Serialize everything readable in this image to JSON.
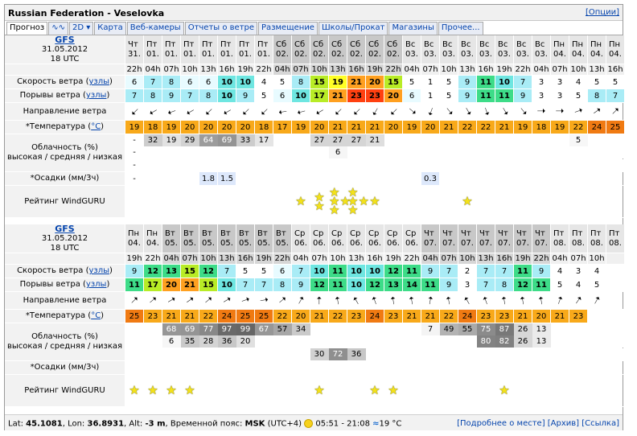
{
  "window": {
    "title": "Russian Federation - Veselovka",
    "options": "[Опции]"
  },
  "tabs": [
    "Прогноз",
    "2D",
    "Карта",
    "Веб-камеры",
    "Отчеты о ветре",
    "Размещение",
    "Школы/Прокат",
    "Магазины",
    "Прочее..."
  ],
  "icons": {
    "graph_tab": "wave-graph-icon",
    "dropdown": "chevron-down-icon",
    "star": "star-icon",
    "sun": "sun-icon",
    "water": "water-wave-icon"
  },
  "labels": {
    "model": "GFS",
    "date": "31.05.2012",
    "utc": "18 UTC",
    "speed_prefix": "Скорость ветра (",
    "gust_prefix": "Порывы ветра (",
    "units": "узлы",
    "close": ")",
    "direction": "Направление ветра",
    "temp_prefix": "*Температура (",
    "temp_unit": "°C",
    "cloud1": "Облачность (%)",
    "cloud2": "высокая / средняя / низкая",
    "precip": "*Осадки (мм/3ч)",
    "rating": "Рейтинг WindGURU"
  },
  "colors": {
    "wind_scale": [
      "#ffffff",
      "#e8fbff",
      "#a9ecf6",
      "#6ee6e1",
      "#3ddc88",
      "#ffff25",
      "#ffa020",
      "#ff4010"
    ],
    "temp_orange": "#f8a91a",
    "temp_dark": "#f07a12"
  },
  "blocks": [
    {
      "days": [
        "Чт",
        "Пт",
        "Пт",
        "Пт",
        "Пт",
        "Пт",
        "Пт",
        "Пт",
        "Сб",
        "Сб",
        "Сб",
        "Сб",
        "Сб",
        "Сб",
        "Сб",
        "Вс",
        "Вс",
        "Вс",
        "Вс",
        "Вс",
        "Вс",
        "Вс",
        "Вс",
        "Пн",
        "Пн",
        "Пн",
        "Пн"
      ],
      "dates": [
        "31.",
        "01.",
        "01.",
        "01.",
        "01.",
        "01.",
        "01.",
        "01.",
        "02.",
        "02.",
        "02.",
        "02.",
        "02.",
        "02.",
        "02.",
        "03.",
        "03.",
        "03.",
        "03.",
        "03.",
        "03.",
        "03.",
        "03.",
        "04.",
        "04.",
        "04.",
        "04."
      ],
      "hours": [
        "22h",
        "04h",
        "07h",
        "10h",
        "13h",
        "16h",
        "19h",
        "22h",
        "04h",
        "07h",
        "10h",
        "13h",
        "16h",
        "19h",
        "22h",
        "04h",
        "07h",
        "10h",
        "13h",
        "16h",
        "19h",
        "22h",
        "04h",
        "07h",
        "10h",
        "13h",
        "16h"
      ],
      "weekend": [
        0,
        0,
        0,
        0,
        0,
        0,
        0,
        0,
        1,
        1,
        1,
        1,
        1,
        1,
        1,
        0,
        0,
        0,
        0,
        0,
        0,
        0,
        0,
        0,
        0,
        0,
        0
      ],
      "speed": [
        6,
        7,
        8,
        6,
        6,
        10,
        10,
        4,
        5,
        8,
        15,
        19,
        21,
        20,
        15,
        5,
        1,
        5,
        9,
        11,
        10,
        7,
        3,
        3,
        4,
        5,
        5
      ],
      "gust": [
        7,
        8,
        9,
        7,
        8,
        10,
        9,
        5,
        6,
        10,
        17,
        21,
        23,
        23,
        20,
        6,
        1,
        5,
        9,
        11,
        11,
        9,
        3,
        3,
        5,
        8,
        7
      ],
      "dir": [
        45,
        60,
        70,
        60,
        45,
        60,
        45,
        45,
        80,
        75,
        60,
        45,
        45,
        30,
        45,
        310,
        20,
        320,
        330,
        340,
        330,
        320,
        270,
        270,
        250,
        235,
        225
      ],
      "temp": [
        19,
        18,
        19,
        20,
        20,
        20,
        20,
        18,
        17,
        19,
        20,
        21,
        21,
        21,
        20,
        19,
        20,
        21,
        22,
        22,
        21,
        19,
        18,
        19,
        22,
        24,
        25
      ],
      "cloud_high": [
        "-",
        "32",
        "19",
        "29",
        "64",
        "69",
        "33",
        "17",
        "",
        "",
        "27",
        "27",
        "27",
        "21",
        "",
        "",
        "",
        "",
        "",
        "",
        "",
        "",
        "",
        "",
        "5",
        "",
        ""
      ],
      "cloud_mid": [
        "-",
        "",
        "",
        "",
        "",
        "",
        "",
        "",
        "",
        "",
        "",
        "6",
        "",
        "",
        "",
        "",
        "",
        "",
        "",
        "",
        "",
        "",
        "",
        "",
        "",
        "",
        ""
      ],
      "cloud_low": [
        "-",
        "",
        "",
        "",
        "",
        "",
        "",
        "",
        "",
        "",
        "",
        "",
        "",
        "",
        "",
        "",
        "",
        "",
        "",
        "",
        "",
        "",
        "",
        "",
        "",
        "",
        ""
      ],
      "precip": [
        "-",
        "",
        "",
        "",
        "1.8",
        "1.5",
        "",
        "",
        "",
        "",
        "",
        "",
        "",
        "",
        "",
        "",
        "0.3",
        "",
        "",
        "",
        "",
        "",
        "",
        "",
        "",
        "",
        ""
      ],
      "stars": [
        0,
        0,
        0,
        0,
        0,
        0,
        0,
        0,
        0,
        1,
        2,
        4,
        4,
        1,
        0,
        0,
        0,
        0,
        1,
        0,
        0,
        0,
        0,
        0,
        0,
        0,
        0
      ]
    },
    {
      "days": [
        "Пн",
        "Пн",
        "Вт",
        "Вт",
        "Вт",
        "Вт",
        "Вт",
        "Вт",
        "Вт",
        "Ср",
        "Ср",
        "Ср",
        "Ср",
        "Ср",
        "Ср",
        "Ср",
        "Чт",
        "Чт",
        "Чт",
        "Чт",
        "Чт",
        "Чт",
        "Чт",
        "Пт",
        "Пт",
        "Пт",
        "Пт"
      ],
      "dates": [
        "04.",
        "04.",
        "05.",
        "05.",
        "05.",
        "05.",
        "05.",
        "05.",
        "05.",
        "06.",
        "06.",
        "06.",
        "06.",
        "06.",
        "06.",
        "06.",
        "07.",
        "07.",
        "07.",
        "07.",
        "07.",
        "07.",
        "07.",
        "08.",
        "08.",
        "08.",
        "08."
      ],
      "hours": [
        "19h",
        "22h",
        "04h",
        "07h",
        "10h",
        "13h",
        "16h",
        "19h",
        "22h",
        "04h",
        "07h",
        "10h",
        "13h",
        "16h",
        "19h",
        "22h",
        "04h",
        "07h",
        "10h",
        "13h",
        "16h",
        "19h",
        "22h",
        "04h",
        "07h",
        "10h",
        ""
      ],
      "weekend": [
        0,
        0,
        1,
        1,
        1,
        1,
        1,
        1,
        1,
        0,
        0,
        0,
        0,
        0,
        0,
        0,
        1,
        1,
        1,
        1,
        1,
        1,
        1,
        0,
        0,
        0,
        0
      ],
      "speed": [
        9,
        12,
        13,
        15,
        12,
        7,
        5,
        5,
        6,
        7,
        10,
        11,
        10,
        10,
        12,
        11,
        9,
        7,
        2,
        7,
        7,
        11,
        9,
        4,
        3,
        4,
        ""
      ],
      "gust": [
        11,
        17,
        20,
        21,
        15,
        10,
        7,
        7,
        8,
        9,
        12,
        11,
        10,
        12,
        13,
        14,
        11,
        9,
        3,
        7,
        8,
        12,
        11,
        5,
        4,
        5,
        ""
      ],
      "dir": [
        225,
        230,
        240,
        235,
        230,
        240,
        250,
        260,
        230,
        210,
        180,
        170,
        150,
        160,
        170,
        170,
        190,
        170,
        150,
        160,
        170,
        170,
        170,
        200,
        215,
        210,
        ""
      ],
      "temp": [
        25,
        23,
        21,
        21,
        22,
        24,
        25,
        25,
        22,
        20,
        21,
        22,
        23,
        24,
        23,
        21,
        21,
        22,
        24,
        23,
        23,
        21,
        20,
        21,
        23,
        "",
        ""
      ],
      "cloud_high": [
        "",
        "",
        "68",
        "69",
        "77",
        "97",
        "99",
        "67",
        "57",
        "34",
        "",
        "",
        "",
        "",
        "",
        "",
        "7",
        "49",
        "55",
        "75",
        "87",
        "26",
        "13",
        "",
        "",
        "",
        ""
      ],
      "cloud_mid": [
        "",
        "",
        "6",
        "35",
        "28",
        "36",
        "20",
        "",
        "",
        "",
        "",
        "",
        "",
        "",
        "",
        "",
        "",
        "",
        "",
        "80",
        "82",
        "26",
        "13",
        "",
        "",
        "",
        ""
      ],
      "cloud_low": [
        "",
        "",
        "",
        "",
        "",
        "",
        "",
        "",
        "",
        "",
        "30",
        "72",
        "36",
        "",
        "",
        "",
        "",
        "",
        "",
        "",
        "",
        "",
        "",
        "",
        "",
        "",
        ""
      ],
      "precip": [
        "",
        "",
        "",
        "",
        "",
        "",
        "",
        "",
        "",
        "",
        "",
        "",
        "",
        "",
        "",
        "",
        "",
        "",
        "",
        "",
        "",
        "",
        "",
        "",
        "",
        "",
        ""
      ],
      "stars": [
        1,
        1,
        1,
        1,
        0,
        0,
        0,
        0,
        0,
        0,
        1,
        0,
        0,
        1,
        1,
        0,
        0,
        0,
        0,
        0,
        1,
        0,
        0,
        0,
        0,
        0,
        0
      ]
    }
  ],
  "footer": {
    "lat_label": "Lat: ",
    "lat": "45.1081",
    "lon_label": ", Lon: ",
    "lon": "36.8931",
    "alt_label": ", Alt: ",
    "alt": "-3 m",
    "tz_label": ", Временной пояс: ",
    "tz": "MSK",
    "tz_offset": " (UTC+4)",
    "sun": "05:51 - 21:08",
    "water": "19 °C",
    "links": "[Подробнее о месте] [Архив] [Ссылка]"
  }
}
